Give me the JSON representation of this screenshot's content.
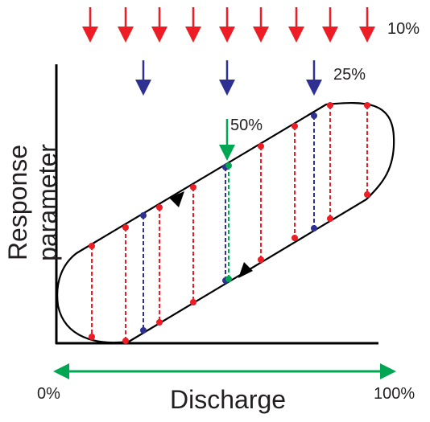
{
  "labels": {
    "pct_10": "10%",
    "pct_25": "25%",
    "pct_50": "50%",
    "pct_0": "0%",
    "pct_100": "100%",
    "xlabel": "Discharge",
    "ylabel": "Response parameter"
  },
  "colors": {
    "red": "#ee1c25",
    "blue": "#2e3192",
    "green": "#00a651",
    "black": "#000000"
  },
  "icons": [
    "arrow-down-icon",
    "double-arrow-icon",
    "loop-direction-arrow-icon"
  ]
}
